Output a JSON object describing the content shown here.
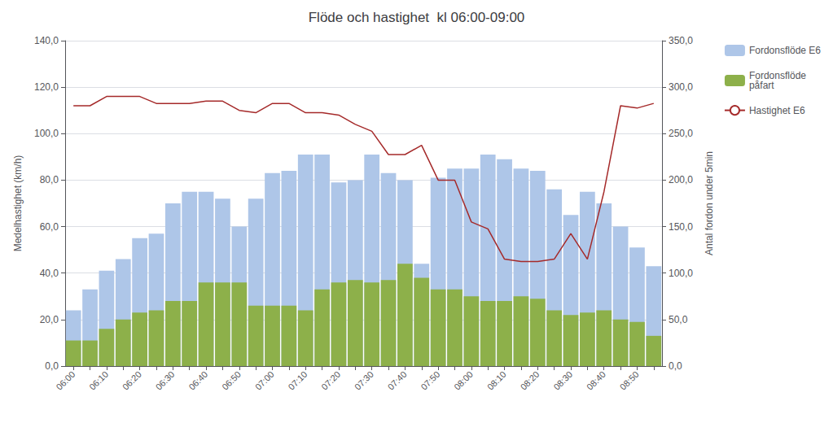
{
  "chart_data": {
    "type": "bar",
    "title": "Flöde och hastighet  kl 06:00-09:00",
    "y_label": "Medelhastighet (km/h)",
    "y2_label": "Antal fordon under 5min",
    "categories": [
      "06:00",
      null,
      "06:10",
      null,
      "06:20",
      null,
      "06:30",
      null,
      "06:40",
      null,
      "06:50",
      null,
      "07:00",
      null,
      "07:10",
      null,
      "07:20",
      null,
      "07:30",
      null,
      "07:40",
      null,
      "07:50",
      null,
      "08:00",
      null,
      "08:10",
      null,
      "08:20",
      null,
      "08:30",
      null,
      "08:40",
      null,
      "08:50",
      null
    ],
    "series": [
      {
        "name": "Fordonsflöde E6",
        "type": "bar",
        "color": "#aec6e8",
        "values": [
          24,
          33,
          41,
          46,
          55,
          57,
          70,
          75,
          75,
          72,
          60,
          72,
          83,
          84,
          91,
          91,
          79,
          80,
          91,
          83,
          80,
          44,
          81,
          85,
          85,
          91,
          89,
          85,
          84,
          76,
          65,
          75,
          70,
          60,
          51,
          43
        ]
      },
      {
        "name": "Fordonsflöde\npåfart",
        "type": "bar",
        "color": "#8db04a",
        "values": [
          11,
          11,
          16,
          20,
          23,
          24,
          28,
          28,
          36,
          36,
          36,
          26,
          26,
          26,
          24,
          33,
          36,
          37,
          36,
          37,
          44,
          38,
          33,
          33,
          30,
          28,
          28,
          30,
          29,
          24,
          22,
          23,
          24,
          20,
          19,
          13
        ]
      },
      {
        "name": "Hastighet E6",
        "type": "line",
        "color": "#a52a2a",
        "values": [
          112,
          112,
          116,
          116,
          116,
          113,
          113,
          113,
          114,
          114,
          110,
          109,
          113,
          113,
          109,
          109,
          108,
          104,
          101,
          91,
          91,
          95,
          80,
          80,
          62,
          59,
          46,
          45,
          45,
          46,
          57,
          46,
          75,
          112,
          111,
          113
        ]
      }
    ],
    "stacked": false,
    "ylim": [
      0,
      140
    ],
    "yticks": [
      {
        "value": 0,
        "label": "0,0"
      },
      {
        "value": 20,
        "label": "20,0"
      },
      {
        "value": 40,
        "label": "40,0"
      },
      {
        "value": 60,
        "label": "60,0"
      },
      {
        "value": 80,
        "label": "80,0"
      },
      {
        "value": 100,
        "label": "100,0"
      },
      {
        "value": 120,
        "label": "120,0"
      },
      {
        "value": 140,
        "label": "140,0"
      }
    ],
    "y2lim": [
      0,
      350
    ],
    "y2ticks": [
      {
        "value": 0,
        "label": "0,0"
      },
      {
        "value": 50,
        "label": "50,0"
      },
      {
        "value": 100,
        "label": "100,0"
      },
      {
        "value": 150,
        "label": "150,0"
      },
      {
        "value": 200,
        "label": "200,0"
      },
      {
        "value": 250,
        "label": "250,0"
      },
      {
        "value": 300,
        "label": "300,0"
      },
      {
        "value": 350,
        "label": "350,0"
      }
    ],
    "grid": true,
    "legend": "right"
  }
}
